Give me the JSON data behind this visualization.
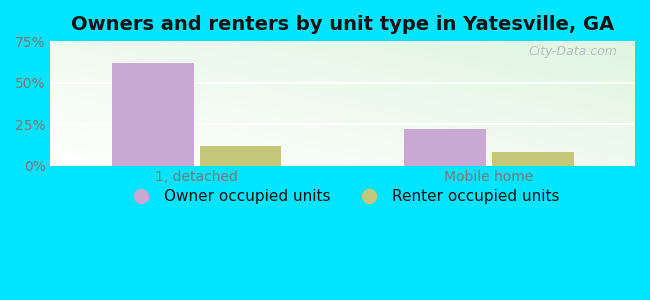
{
  "title": "Owners and renters by unit type in Yatesville, GA",
  "categories": [
    "1, detached",
    "Mobile home"
  ],
  "owner_values": [
    62,
    22
  ],
  "renter_values": [
    12,
    8
  ],
  "owner_color": "#c9a8d4",
  "renter_color": "#c5c87a",
  "ylim": [
    0,
    75
  ],
  "yticks": [
    0,
    25,
    50,
    75
  ],
  "yticklabels": [
    "0%",
    "25%",
    "50%",
    "75%"
  ],
  "bar_width": 0.28,
  "watermark": "City-Data.com",
  "legend_labels": [
    "Owner occupied units",
    "Renter occupied units"
  ],
  "title_fontsize": 14,
  "tick_fontsize": 10,
  "legend_fontsize": 11,
  "outer_bg": "#00e5ff",
  "axes_bg_color": "#eaf5e8"
}
